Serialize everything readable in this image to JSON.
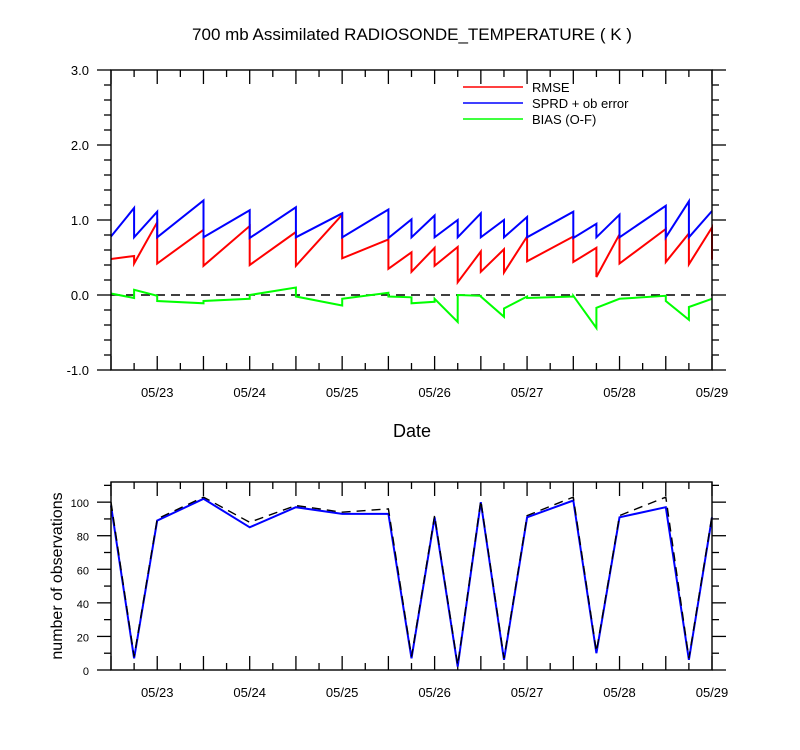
{
  "chart_data": [
    {
      "type": "line",
      "title": "700 mb Assimilated RADIOSONDE_TEMPERATURE ( K )",
      "xlabel": "Date",
      "ylabel": "",
      "x_ticks": [
        "05/23",
        "05/24",
        "05/25",
        "05/26",
        "05/27",
        "05/28",
        "05/29"
      ],
      "x_tick_days": [
        23,
        24,
        25,
        26,
        27,
        28,
        29
      ],
      "xlim": [
        22.5,
        29.0
      ],
      "ylim": [
        -1.0,
        3.0
      ],
      "y_ticks": [
        "-1.0",
        "0.0",
        "1.0",
        "2.0",
        "3.0"
      ],
      "y_tick_values": [
        -1.0,
        0.0,
        1.0,
        2.0,
        3.0
      ],
      "legend_position": "top-right",
      "reference_line": {
        "y": 0.0,
        "style": "dashed",
        "color": "#000000"
      },
      "series": [
        {
          "name": "RMSE",
          "color": "#ff0000",
          "points": [
            [
              22.5,
              0.48
            ],
            [
              22.75,
              0.52
            ],
            [
              22.75,
              0.42
            ],
            [
              23.0,
              0.97
            ],
            [
              23.0,
              0.42
            ],
            [
              23.5,
              0.87
            ],
            [
              23.5,
              0.39
            ],
            [
              24.0,
              0.92
            ],
            [
              24.0,
              0.4
            ],
            [
              24.5,
              0.84
            ],
            [
              24.5,
              0.39
            ],
            [
              25.0,
              1.07
            ],
            [
              25.0,
              0.49
            ],
            [
              25.5,
              0.74
            ],
            [
              25.5,
              0.35
            ],
            [
              25.75,
              0.57
            ],
            [
              25.75,
              0.31
            ],
            [
              26.0,
              0.63
            ],
            [
              26.0,
              0.39
            ],
            [
              26.25,
              0.64
            ],
            [
              26.25,
              0.17
            ],
            [
              26.5,
              0.58
            ],
            [
              26.5,
              0.31
            ],
            [
              26.75,
              0.61
            ],
            [
              26.75,
              0.3
            ],
            [
              27.0,
              0.78
            ],
            [
              27.0,
              0.45
            ],
            [
              27.5,
              0.78
            ],
            [
              27.5,
              0.44
            ],
            [
              27.75,
              0.63
            ],
            [
              27.75,
              0.24
            ],
            [
              28.0,
              0.81
            ],
            [
              28.0,
              0.42
            ],
            [
              28.5,
              0.88
            ],
            [
              28.5,
              0.44
            ],
            [
              28.75,
              0.82
            ],
            [
              28.75,
              0.41
            ],
            [
              29.0,
              0.9
            ],
            [
              29.0,
              0.47
            ]
          ]
        },
        {
          "name": "SPRD + ob error",
          "color": "#0000ff",
          "points": [
            [
              22.5,
              0.78
            ],
            [
              22.75,
              1.16
            ],
            [
              22.75,
              0.77
            ],
            [
              23.0,
              1.11
            ],
            [
              23.0,
              0.77
            ],
            [
              23.5,
              1.26
            ],
            [
              23.5,
              0.77
            ],
            [
              24.0,
              1.13
            ],
            [
              24.0,
              0.76
            ],
            [
              24.5,
              1.17
            ],
            [
              24.5,
              0.77
            ],
            [
              25.0,
              1.09
            ],
            [
              25.0,
              0.77
            ],
            [
              25.5,
              1.14
            ],
            [
              25.5,
              0.76
            ],
            [
              25.75,
              1.01
            ],
            [
              25.75,
              0.77
            ],
            [
              26.0,
              1.06
            ],
            [
              26.0,
              0.77
            ],
            [
              26.25,
              1.0
            ],
            [
              26.25,
              0.77
            ],
            [
              26.5,
              1.09
            ],
            [
              26.5,
              0.77
            ],
            [
              26.75,
              1.0
            ],
            [
              26.75,
              0.77
            ],
            [
              27.0,
              1.04
            ],
            [
              27.0,
              0.77
            ],
            [
              27.5,
              1.11
            ],
            [
              27.5,
              0.76
            ],
            [
              27.75,
              0.95
            ],
            [
              27.75,
              0.77
            ],
            [
              28.0,
              1.07
            ],
            [
              28.0,
              0.77
            ],
            [
              28.5,
              1.19
            ],
            [
              28.5,
              0.77
            ],
            [
              28.75,
              1.25
            ],
            [
              28.75,
              0.77
            ],
            [
              29.0,
              1.12
            ]
          ]
        },
        {
          "name": "BIAS (O-F)",
          "color": "#00ff00",
          "points": [
            [
              22.5,
              0.02
            ],
            [
              22.75,
              -0.04
            ],
            [
              22.75,
              0.07
            ],
            [
              23.0,
              -0.01
            ],
            [
              23.0,
              -0.08
            ],
            [
              23.5,
              -0.11
            ],
            [
              23.5,
              -0.08
            ],
            [
              24.0,
              -0.05
            ],
            [
              24.0,
              0.0
            ],
            [
              24.5,
              0.1
            ],
            [
              24.5,
              -0.02
            ],
            [
              25.0,
              -0.14
            ],
            [
              25.0,
              -0.05
            ],
            [
              25.5,
              0.03
            ],
            [
              25.5,
              -0.02
            ],
            [
              25.75,
              -0.03
            ],
            [
              25.75,
              -0.11
            ],
            [
              26.0,
              -0.09
            ],
            [
              26.0,
              -0.05
            ],
            [
              26.25,
              -0.36
            ],
            [
              26.25,
              0.0
            ],
            [
              26.5,
              -0.01
            ],
            [
              26.5,
              -0.02
            ],
            [
              26.75,
              -0.29
            ],
            [
              26.75,
              -0.18
            ],
            [
              27.0,
              -0.02
            ],
            [
              27.0,
              -0.04
            ],
            [
              27.5,
              -0.02
            ],
            [
              27.5,
              -0.01
            ],
            [
              27.75,
              -0.44
            ],
            [
              27.75,
              -0.17
            ],
            [
              28.0,
              -0.05
            ],
            [
              28.5,
              -0.01
            ],
            [
              28.5,
              -0.08
            ],
            [
              28.75,
              -0.33
            ],
            [
              28.75,
              -0.16
            ],
            [
              29.0,
              -0.05
            ]
          ]
        }
      ]
    },
    {
      "type": "line",
      "title": "",
      "xlabel": "",
      "ylabel": "number of observations",
      "x_ticks": [
        "05/23",
        "05/24",
        "05/25",
        "05/26",
        "05/27",
        "05/28",
        "05/29"
      ],
      "x_tick_days": [
        23,
        24,
        25,
        26,
        27,
        28,
        29
      ],
      "xlim": [
        22.5,
        29.0
      ],
      "ylim": [
        0,
        112
      ],
      "y_ticks": [
        "0",
        "20",
        "40",
        "60",
        "80",
        "100"
      ],
      "y_tick_values": [
        0,
        20,
        40,
        60,
        80,
        100
      ],
      "series": [
        {
          "color": "#0000ff",
          "style": "solid",
          "points": [
            [
              22.5,
              98
            ],
            [
              22.75,
              7
            ],
            [
              23.0,
              89
            ],
            [
              23.5,
              102
            ],
            [
              24.0,
              85
            ],
            [
              24.5,
              97
            ],
            [
              25.0,
              93
            ],
            [
              25.5,
              93
            ],
            [
              25.75,
              7
            ],
            [
              26.0,
              91
            ],
            [
              26.25,
              2
            ],
            [
              26.5,
              100
            ],
            [
              26.75,
              6
            ],
            [
              27.0,
              91
            ],
            [
              27.5,
              101
            ],
            [
              27.75,
              10
            ],
            [
              28.0,
              91
            ],
            [
              28.5,
              97
            ],
            [
              28.75,
              6
            ],
            [
              29.0,
              91
            ]
          ]
        },
        {
          "color": "#000000",
          "style": "dashed",
          "points": [
            [
              22.5,
              100
            ],
            [
              22.75,
              8
            ],
            [
              23.0,
              90
            ],
            [
              23.5,
              103
            ],
            [
              24.0,
              88
            ],
            [
              24.5,
              98
            ],
            [
              25.0,
              94
            ],
            [
              25.5,
              96
            ],
            [
              25.75,
              8
            ],
            [
              26.0,
              92
            ],
            [
              26.25,
              3
            ],
            [
              26.5,
              101
            ],
            [
              26.75,
              7
            ],
            [
              27.0,
              92
            ],
            [
              27.5,
              103
            ],
            [
              27.75,
              11
            ],
            [
              28.0,
              92
            ],
            [
              28.5,
              103
            ],
            [
              28.75,
              7
            ],
            [
              29.0,
              92
            ]
          ]
        }
      ]
    }
  ]
}
